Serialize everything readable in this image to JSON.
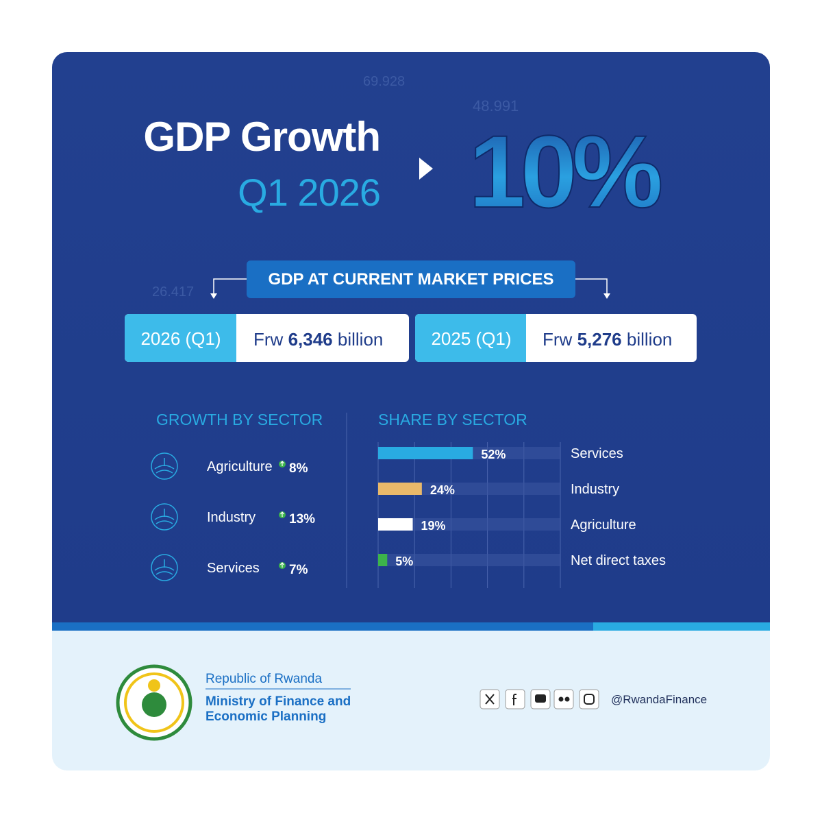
{
  "background_labels": [
    "69.928",
    "48.991",
    "26.417"
  ],
  "header": {
    "title": "GDP Growth",
    "period": "Q1 2026",
    "growth": "10%"
  },
  "gdp": {
    "banner": "GDP AT CURRENT MARKET PRICES",
    "items": [
      {
        "period": "2026 (Q1)",
        "currency": "Frw",
        "amount": "6,346",
        "unit": "billion"
      },
      {
        "period": "2025 (Q1)",
        "currency": "Frw",
        "amount": "5,276",
        "unit": "billion"
      }
    ]
  },
  "growth_by_sector": {
    "title": "GROWTH BY SECTOR",
    "rows": [
      {
        "name": "Agriculture",
        "value": "8%"
      },
      {
        "name": "Industry",
        "value": "13%"
      },
      {
        "name": "Services",
        "value": "7%"
      }
    ]
  },
  "chart_data": {
    "type": "bar",
    "orientation": "horizontal",
    "title": "SHARE BY SECTOR",
    "categories": [
      "Services",
      "Industry",
      "Agriculture",
      "Net direct taxes"
    ],
    "values": [
      52,
      24,
      19,
      5
    ],
    "value_labels": [
      "52%",
      "24%",
      "19%",
      "5%"
    ],
    "colors": [
      "#29abe2",
      "#e9b96a",
      "#ffffff",
      "#3cb44b"
    ],
    "xlim": [
      0,
      100
    ]
  },
  "footer": {
    "country": "Republic of Rwanda",
    "ministry_line1": "Ministry of Finance and",
    "ministry_line2": "Economic Planning",
    "handle": "@RwandaFinance"
  }
}
